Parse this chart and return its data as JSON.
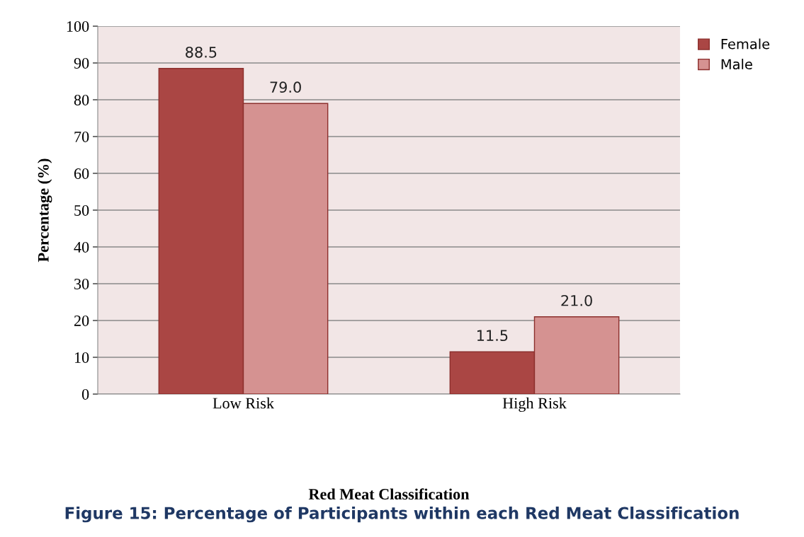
{
  "chart_data": {
    "type": "bar",
    "categories": [
      "Low Risk",
      "High Risk"
    ],
    "series": [
      {
        "name": "Female",
        "color": "#aa4644",
        "values": [
          88.5,
          11.5
        ],
        "value_labels": [
          "88.5",
          "11.5"
        ]
      },
      {
        "name": "Male",
        "color": "#d59291",
        "values": [
          79.0,
          21.0
        ],
        "value_labels": [
          "79.0",
          "21.0"
        ]
      }
    ],
    "ylabel": "Percentage (%)",
    "xlabel": "Red Meat Classification",
    "annotations": [
      "Figure 15: Percentage of Participants within each Red Meat Classification"
    ],
    "ylim": [
      0,
      100
    ],
    "yticks": [
      0,
      10,
      20,
      30,
      40,
      50,
      60,
      70,
      80,
      90,
      100
    ],
    "grid": "y",
    "legend": "right"
  }
}
